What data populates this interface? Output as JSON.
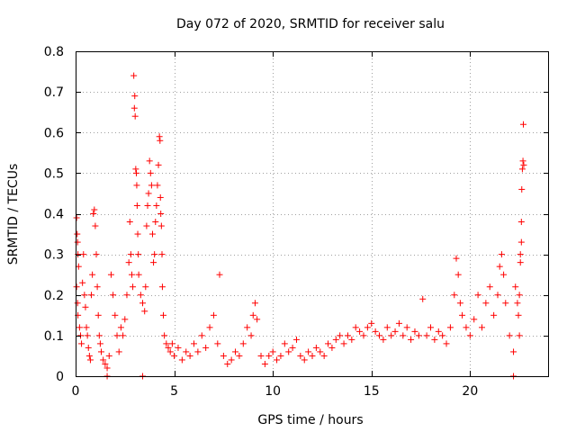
{
  "chart_data": {
    "type": "scatter",
    "title": "Day 072 of 2020, SRMTID for receiver salu",
    "xlabel": "GPS time / hours",
    "ylabel": "SRMTID / TECUs",
    "xlim": [
      0,
      24
    ],
    "ylim": [
      0,
      0.8
    ],
    "xticks": [
      0,
      5,
      10,
      15,
      20
    ],
    "xtick_labels": [
      "0",
      "5",
      "10",
      "15",
      "20"
    ],
    "yticks": [
      0,
      0.1,
      0.2,
      0.3,
      0.4,
      0.5,
      0.6,
      0.7,
      0.8
    ],
    "ytick_labels": [
      "0",
      "0.1",
      "0.2",
      "0.3",
      "0.4",
      "0.5",
      "0.6",
      "0.7",
      "0.8"
    ],
    "grid": true,
    "marker": "+",
    "color": "#ff0000",
    "series": [
      {
        "name": "SRMTID",
        "points": [
          [
            0.05,
            0.39
          ],
          [
            0.08,
            0.35
          ],
          [
            0.1,
            0.33
          ],
          [
            0.12,
            0.3
          ],
          [
            0.15,
            0.27
          ],
          [
            0.05,
            0.22
          ],
          [
            0.1,
            0.18
          ],
          [
            0.12,
            0.15
          ],
          [
            0.2,
            0.12
          ],
          [
            0.25,
            0.1
          ],
          [
            0.3,
            0.08
          ],
          [
            0.35,
            0.23
          ],
          [
            0.4,
            0.3
          ],
          [
            0.45,
            0.2
          ],
          [
            0.5,
            0.17
          ],
          [
            0.55,
            0.12
          ],
          [
            0.6,
            0.1
          ],
          [
            0.65,
            0.07
          ],
          [
            0.7,
            0.05
          ],
          [
            0.75,
            0.04
          ],
          [
            0.8,
            0.2
          ],
          [
            0.85,
            0.25
          ],
          [
            0.9,
            0.4
          ],
          [
            0.95,
            0.41
          ],
          [
            1.0,
            0.37
          ],
          [
            1.05,
            0.3
          ],
          [
            1.1,
            0.22
          ],
          [
            1.15,
            0.15
          ],
          [
            1.2,
            0.1
          ],
          [
            1.25,
            0.08
          ],
          [
            1.3,
            0.06
          ],
          [
            1.4,
            0.04
          ],
          [
            1.5,
            0.03
          ],
          [
            1.6,
            0.02
          ],
          [
            1.7,
            0.05
          ],
          [
            1.8,
            0.25
          ],
          [
            1.9,
            0.2
          ],
          [
            2.0,
            0.15
          ],
          [
            2.1,
            0.1
          ],
          [
            2.2,
            0.06
          ],
          [
            2.3,
            0.12
          ],
          [
            2.4,
            0.1
          ],
          [
            2.5,
            0.14
          ],
          [
            2.6,
            0.2
          ],
          [
            2.7,
            0.28
          ],
          [
            2.75,
            0.38
          ],
          [
            2.8,
            0.3
          ],
          [
            2.85,
            0.25
          ],
          [
            2.9,
            0.22
          ],
          [
            2.95,
            0.74
          ],
          [
            3.0,
            0.69
          ],
          [
            2.98,
            0.66
          ],
          [
            3.02,
            0.64
          ],
          [
            3.05,
            0.51
          ],
          [
            3.08,
            0.5
          ],
          [
            3.1,
            0.47
          ],
          [
            3.12,
            0.42
          ],
          [
            3.15,
            0.35
          ],
          [
            3.18,
            0.3
          ],
          [
            3.2,
            0.25
          ],
          [
            3.3,
            0.2
          ],
          [
            3.4,
            0.18
          ],
          [
            3.5,
            0.16
          ],
          [
            3.55,
            0.22
          ],
          [
            3.6,
            0.37
          ],
          [
            3.65,
            0.42
          ],
          [
            3.7,
            0.45
          ],
          [
            3.75,
            0.53
          ],
          [
            3.8,
            0.5
          ],
          [
            3.85,
            0.47
          ],
          [
            3.9,
            0.35
          ],
          [
            3.95,
            0.28
          ],
          [
            4.0,
            0.3
          ],
          [
            4.05,
            0.38
          ],
          [
            4.1,
            0.42
          ],
          [
            4.15,
            0.47
          ],
          [
            4.2,
            0.52
          ],
          [
            4.25,
            0.59
          ],
          [
            4.28,
            0.58
          ],
          [
            4.3,
            0.44
          ],
          [
            4.32,
            0.4
          ],
          [
            4.35,
            0.37
          ],
          [
            4.38,
            0.3
          ],
          [
            4.4,
            0.22
          ],
          [
            4.45,
            0.15
          ],
          [
            4.5,
            0.1
          ],
          [
            4.6,
            0.08
          ],
          [
            4.7,
            0.07
          ],
          [
            4.8,
            0.06
          ],
          [
            4.9,
            0.08
          ],
          [
            5.0,
            0.05
          ],
          [
            5.2,
            0.07
          ],
          [
            5.4,
            0.04
          ],
          [
            5.6,
            0.06
          ],
          [
            5.8,
            0.05
          ],
          [
            6.0,
            0.08
          ],
          [
            6.2,
            0.06
          ],
          [
            6.4,
            0.1
          ],
          [
            6.6,
            0.07
          ],
          [
            6.8,
            0.12
          ],
          [
            7.0,
            0.15
          ],
          [
            7.2,
            0.08
          ],
          [
            7.3,
            0.25
          ],
          [
            7.5,
            0.05
          ],
          [
            7.7,
            0.03
          ],
          [
            7.9,
            0.04
          ],
          [
            8.1,
            0.06
          ],
          [
            8.3,
            0.05
          ],
          [
            8.5,
            0.08
          ],
          [
            8.7,
            0.12
          ],
          [
            8.9,
            0.1
          ],
          [
            9.0,
            0.15
          ],
          [
            9.1,
            0.18
          ],
          [
            9.2,
            0.14
          ],
          [
            9.4,
            0.05
          ],
          [
            9.6,
            0.03
          ],
          [
            9.8,
            0.05
          ],
          [
            10.0,
            0.06
          ],
          [
            10.2,
            0.04
          ],
          [
            10.4,
            0.05
          ],
          [
            10.6,
            0.08
          ],
          [
            10.8,
            0.06
          ],
          [
            11.0,
            0.07
          ],
          [
            11.2,
            0.09
          ],
          [
            11.4,
            0.05
          ],
          [
            11.6,
            0.04
          ],
          [
            11.8,
            0.06
          ],
          [
            12.0,
            0.05
          ],
          [
            12.2,
            0.07
          ],
          [
            12.4,
            0.06
          ],
          [
            12.6,
            0.05
          ],
          [
            12.8,
            0.08
          ],
          [
            13.0,
            0.07
          ],
          [
            13.2,
            0.09
          ],
          [
            13.4,
            0.1
          ],
          [
            13.6,
            0.08
          ],
          [
            13.8,
            0.1
          ],
          [
            14.0,
            0.09
          ],
          [
            14.2,
            0.12
          ],
          [
            14.4,
            0.11
          ],
          [
            14.6,
            0.1
          ],
          [
            14.8,
            0.12
          ],
          [
            15.0,
            0.13
          ],
          [
            15.2,
            0.11
          ],
          [
            15.4,
            0.1
          ],
          [
            15.6,
            0.09
          ],
          [
            15.8,
            0.12
          ],
          [
            16.0,
            0.1
          ],
          [
            16.2,
            0.11
          ],
          [
            16.4,
            0.13
          ],
          [
            16.6,
            0.1
          ],
          [
            16.8,
            0.12
          ],
          [
            17.0,
            0.09
          ],
          [
            17.2,
            0.11
          ],
          [
            17.4,
            0.1
          ],
          [
            17.6,
            0.19
          ],
          [
            17.8,
            0.1
          ],
          [
            18.0,
            0.12
          ],
          [
            18.2,
            0.09
          ],
          [
            18.4,
            0.11
          ],
          [
            18.6,
            0.1
          ],
          [
            18.8,
            0.08
          ],
          [
            19.0,
            0.12
          ],
          [
            19.2,
            0.2
          ],
          [
            19.3,
            0.29
          ],
          [
            19.4,
            0.25
          ],
          [
            19.5,
            0.18
          ],
          [
            19.6,
            0.15
          ],
          [
            19.8,
            0.12
          ],
          [
            20.0,
            0.1
          ],
          [
            20.2,
            0.14
          ],
          [
            20.4,
            0.2
          ],
          [
            20.6,
            0.12
          ],
          [
            20.8,
            0.18
          ],
          [
            21.0,
            0.22
          ],
          [
            21.2,
            0.15
          ],
          [
            21.4,
            0.2
          ],
          [
            21.5,
            0.27
          ],
          [
            21.6,
            0.3
          ],
          [
            21.7,
            0.25
          ],
          [
            21.8,
            0.18
          ],
          [
            22.0,
            0.1
          ],
          [
            22.2,
            0.06
          ],
          [
            22.3,
            0.22
          ],
          [
            22.4,
            0.18
          ],
          [
            22.5,
            0.1
          ],
          [
            22.55,
            0.3
          ],
          [
            22.6,
            0.38
          ],
          [
            22.62,
            0.46
          ],
          [
            22.65,
            0.51
          ],
          [
            22.68,
            0.53
          ],
          [
            22.7,
            0.62
          ],
          [
            22.72,
            0.52
          ],
          [
            22.6,
            0.33
          ],
          [
            22.55,
            0.28
          ],
          [
            22.5,
            0.2
          ],
          [
            22.45,
            0.15
          ],
          [
            1.6,
            0.0
          ],
          [
            3.4,
            0.0
          ],
          [
            22.2,
            0.0
          ]
        ]
      }
    ]
  }
}
